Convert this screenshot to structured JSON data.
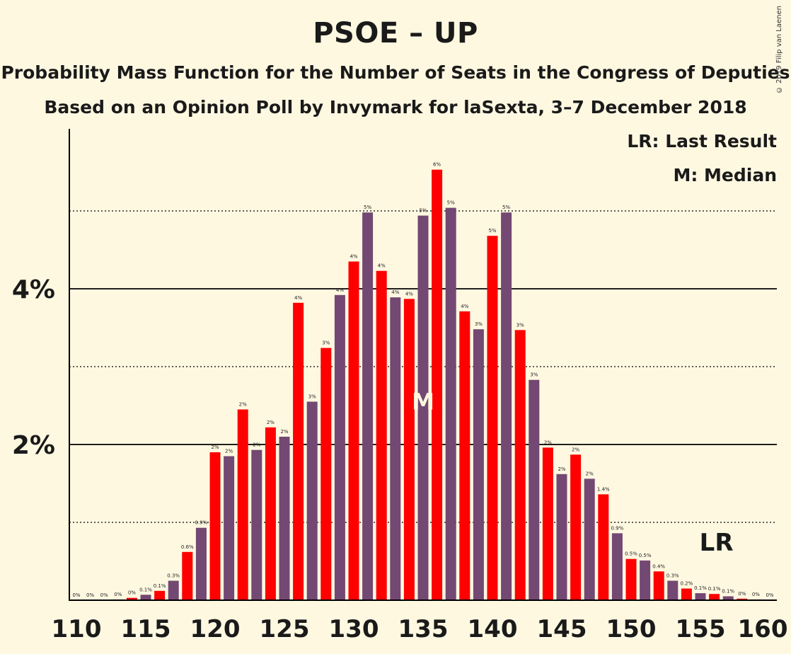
{
  "copyright": "© 2019 Filip van Laenen",
  "legend": {
    "lr": "LR: Last Result",
    "m": "M: Median"
  },
  "markers": {
    "median_label": "M",
    "last_result_label": "LR"
  },
  "colors": {
    "even": "#FF0000",
    "odd": "#734873",
    "background": "#FFF8E1"
  },
  "chart_data": {
    "type": "bar",
    "title": "PSOE – UP",
    "subtitle": "Probability Mass Function for the Number of Seats in the Congress of Deputies",
    "subtitle2": "Based on an Opinion Poll by Invymark for laSexta, 3–7 December 2018",
    "xlabel": "",
    "ylabel": "",
    "x": [
      110,
      111,
      112,
      113,
      114,
      115,
      116,
      117,
      118,
      119,
      120,
      121,
      122,
      123,
      124,
      125,
      126,
      127,
      128,
      129,
      130,
      131,
      132,
      133,
      134,
      135,
      136,
      137,
      138,
      139,
      140,
      141,
      142,
      143,
      144,
      145,
      146,
      147,
      148,
      149,
      150,
      151,
      152,
      153,
      154,
      155,
      156,
      157,
      158,
      159,
      160
    ],
    "values": [
      0.0,
      0.0,
      0.0,
      0.01,
      0.03,
      0.07,
      0.12,
      0.25,
      0.62,
      0.93,
      1.9,
      1.85,
      2.45,
      1.93,
      2.22,
      2.1,
      3.82,
      2.55,
      3.24,
      3.92,
      4.35,
      4.98,
      4.23,
      3.89,
      3.87,
      4.94,
      5.53,
      5.04,
      3.71,
      3.48,
      4.68,
      4.98,
      3.47,
      2.83,
      1.96,
      1.62,
      1.87,
      1.56,
      1.36,
      0.86,
      0.53,
      0.51,
      0.37,
      0.25,
      0.15,
      0.09,
      0.08,
      0.05,
      0.02,
      0.01,
      0.0
    ],
    "data_labels": [
      "0%",
      "0%",
      "0%",
      "0%",
      "0%",
      "0.1%",
      "0.1%",
      "0.3%",
      "0.6%",
      "0.9%",
      "2%",
      "2%",
      "2%",
      "2%",
      "2%",
      "2%",
      "4%",
      "3%",
      "3%",
      "4%",
      "4%",
      "5%",
      "4%",
      "4%",
      "4%",
      "5%",
      "6%",
      "5%",
      "4%",
      "3%",
      "5%",
      "5%",
      "3%",
      "3%",
      "2%",
      "2%",
      "2%",
      "2%",
      "1.4%",
      "0.9%",
      "0.5%",
      "0.5%",
      "0.4%",
      "0.3%",
      "0.2%",
      "0.1%",
      "0.1%",
      "0.1%",
      "0%",
      "0%",
      "0%"
    ],
    "xticks": [
      "110",
      "115",
      "120",
      "125",
      "130",
      "135",
      "140",
      "145",
      "150",
      "155",
      "160"
    ],
    "yticks": [
      "2%",
      "4%"
    ],
    "ylim": [
      0,
      6
    ],
    "median": 135,
    "last_result": 156,
    "grid": "solid at 2% and 4%, dotted at 1%, 3%, 5%"
  }
}
